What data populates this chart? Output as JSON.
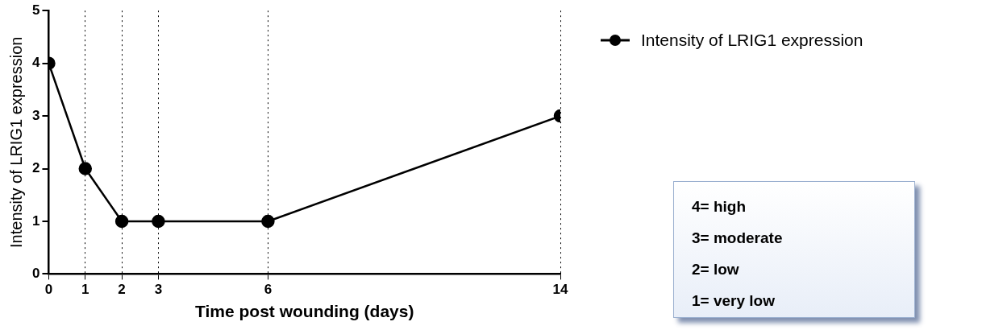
{
  "chart_data": {
    "type": "line",
    "xlabel": "Time post wounding (days)",
    "ylabel": "Intensity of LRIG1 expression",
    "x": [
      0,
      1,
      2,
      3,
      6,
      14
    ],
    "series": [
      {
        "name": "Intensity of LRIG1 expression",
        "color": "#000000",
        "values": [
          4,
          2,
          1,
          1,
          1,
          3
        ]
      }
    ],
    "xlim": [
      0,
      14
    ],
    "xticks": [
      0,
      1,
      2,
      3,
      6,
      14
    ],
    "ylim": [
      0,
      5
    ],
    "yticks": [
      0,
      1,
      2,
      3,
      4,
      5
    ],
    "grid": "x",
    "legend": "top right",
    "marker": "circle",
    "line_style": "solid",
    "annotations": [
      "4= high",
      "3= moderate",
      "2= low",
      "1= very low"
    ]
  }
}
